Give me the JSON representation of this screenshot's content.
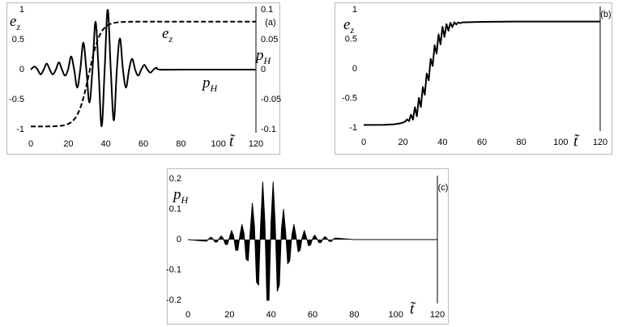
{
  "chart_data": [
    {
      "type": "line",
      "panel_label": "(a)",
      "smooth": true,
      "xlabel": "t̃",
      "ylabel": {
        "text": "e",
        "subscript": "z"
      },
      "y2label": {
        "text": "p",
        "subscript": "H"
      },
      "annotations": [
        {
          "text": "e",
          "subscript": "z"
        },
        {
          "text": "p",
          "subscript": "H"
        }
      ],
      "xlim": [
        0,
        120
      ],
      "xticks": [
        0,
        20,
        40,
        60,
        80,
        100,
        120
      ],
      "ylim": [
        -1,
        1
      ],
      "yticks": [
        -1,
        -0.5,
        0,
        0.5,
        1
      ],
      "y2lim": [
        -0.1,
        0.1
      ],
      "y2ticks": [
        -0.1,
        -0.05,
        0,
        0.05,
        0.1
      ],
      "x": [
        0,
        2,
        3.625,
        5.25,
        6.875,
        8.5,
        10.125,
        11.75,
        13.375,
        15,
        16.625,
        18.25,
        19.875,
        21.5,
        23.125,
        24.75,
        26.375,
        28,
        29.625,
        31.25,
        32.875,
        34.5,
        36.125,
        37.75,
        39.375,
        41,
        42.625,
        44.25,
        45.875,
        47.5,
        49.125,
        50.75,
        52.375,
        54,
        55.625,
        57.25,
        58.875,
        60.5,
        62.125,
        63.75,
        65.375,
        67,
        68.625,
        80,
        90,
        100,
        110,
        120
      ],
      "series": [
        {
          "color": "#000000",
          "dash": true,
          "values": [
            -0.95,
            -0.95,
            -0.95,
            -0.95,
            -0.95,
            -0.949,
            -0.948,
            -0.947,
            -0.945,
            -0.942,
            -0.936,
            -0.925,
            -0.908,
            -0.879,
            -0.832,
            -0.756,
            -0.641,
            -0.479,
            -0.272,
            -0.039,
            0.19,
            0.385,
            0.532,
            0.634,
            0.699,
            0.739,
            0.764,
            0.779,
            0.788,
            0.793,
            0.796,
            0.798,
            0.799,
            0.8,
            0.8,
            0.8,
            0.8,
            0.8,
            0.8,
            0.8,
            0.8,
            0.8,
            0.8,
            0.8,
            0.8,
            0.8,
            0.8,
            0.8
          ]
        },
        {
          "color": "#000000",
          "dash": false,
          "axis": "y2",
          "values": [
            0,
            0.005,
            0,
            -0.008,
            0,
            0.01,
            0,
            -0.008,
            0,
            0.012,
            0,
            -0.01,
            0,
            0.022,
            0,
            -0.03,
            0,
            0.045,
            0,
            -0.055,
            0,
            0.08,
            0,
            -0.095,
            0,
            0.1,
            0,
            -0.085,
            0,
            0.052,
            0,
            -0.03,
            0,
            0.018,
            0,
            -0.01,
            0,
            0.008,
            0,
            -0.005,
            0,
            0.003,
            0,
            0,
            0,
            0,
            0,
            0
          ]
        }
      ]
    },
    {
      "type": "line",
      "panel_label": "(b)",
      "smooth": false,
      "xlabel": "t̃",
      "ylabel": {
        "text": "e",
        "subscript": "z"
      },
      "xlim": [
        0,
        120
      ],
      "xticks": [
        0,
        20,
        40,
        60,
        80,
        100,
        120
      ],
      "ylim": [
        -1,
        1
      ],
      "yticks": [
        -1,
        -0.5,
        0,
        0.5,
        1
      ],
      "x": [
        0,
        10,
        15,
        16,
        17,
        18,
        19,
        20,
        21,
        22,
        23,
        24,
        25,
        26,
        27,
        28,
        29,
        30,
        31,
        32,
        33,
        34,
        35,
        36,
        37,
        38,
        39,
        40,
        41,
        42,
        43,
        44,
        45,
        46,
        47,
        48,
        49,
        50,
        60,
        80,
        100,
        120
      ],
      "series": [
        {
          "color": "#000000",
          "dash": false,
          "values": [
            -0.95,
            -0.948,
            -0.94,
            -0.937,
            -0.932,
            -0.926,
            -0.919,
            -0.908,
            -0.895,
            -0.857,
            -0.885,
            -0.776,
            -0.859,
            -0.651,
            -0.803,
            -0.492,
            -0.646,
            -0.309,
            -0.438,
            -0.079,
            -0.195,
            0.169,
            0.048,
            0.399,
            0.257,
            0.582,
            0.413,
            0.712,
            0.539,
            0.756,
            0.645,
            0.778,
            0.705,
            0.788,
            0.749,
            0.786,
            0.772,
            0.786,
            0.795,
            0.8,
            0.8,
            0.8
          ]
        }
      ]
    },
    {
      "type": "area",
      "panel_label": "(c)",
      "smooth": false,
      "xlabel": "t̃",
      "ylabel": {
        "text": "p",
        "subscript": "H"
      },
      "xlim": [
        0,
        120
      ],
      "xticks": [
        0,
        20,
        40,
        60,
        80,
        100,
        120
      ],
      "ylim": [
        -0.2,
        0.2
      ],
      "yticks": [
        -0.2,
        -0.1,
        0,
        0.1,
        0.2
      ],
      "x": [
        0,
        8,
        9,
        10,
        11,
        12,
        13,
        14,
        15,
        16,
        17,
        18,
        19,
        20,
        21,
        22,
        23,
        24,
        25,
        26,
        27,
        28,
        29,
        30,
        31,
        32,
        33,
        34,
        35,
        36,
        37,
        38,
        39,
        40,
        41,
        42,
        43,
        44,
        45,
        46,
        47,
        48,
        49,
        50,
        51,
        52,
        53,
        54,
        55,
        56,
        57,
        58,
        59,
        60,
        61,
        62,
        63,
        64,
        65,
        66,
        67,
        68,
        69,
        70,
        71,
        80,
        100,
        120
      ],
      "series": [
        {
          "color": "#000000",
          "values": [
            0,
            -0.005,
            -0.005,
            0.002,
            0.008,
            0.003,
            -0.008,
            -0.008,
            0.003,
            0.012,
            0.004,
            -0.016,
            -0.016,
            0.007,
            0.03,
            0.011,
            -0.035,
            -0.035,
            0.014,
            0.05,
            0.02,
            -0.065,
            -0.07,
            0.03,
            0.12,
            0.045,
            -0.14,
            -0.15,
            0.055,
            0.19,
            0.06,
            -0.2,
            -0.2,
            0.06,
            0.19,
            0.05,
            -0.17,
            -0.15,
            0.035,
            0.1,
            0.025,
            -0.08,
            -0.07,
            0.015,
            0.05,
            0.012,
            -0.04,
            -0.035,
            0.008,
            0.03,
            0.007,
            -0.02,
            -0.018,
            0.004,
            0.015,
            0.004,
            -0.01,
            -0.01,
            0.003,
            0.01,
            0.003,
            -0.006,
            -0.006,
            0.002,
            0.005,
            0,
            0,
            0
          ]
        }
      ]
    }
  ]
}
